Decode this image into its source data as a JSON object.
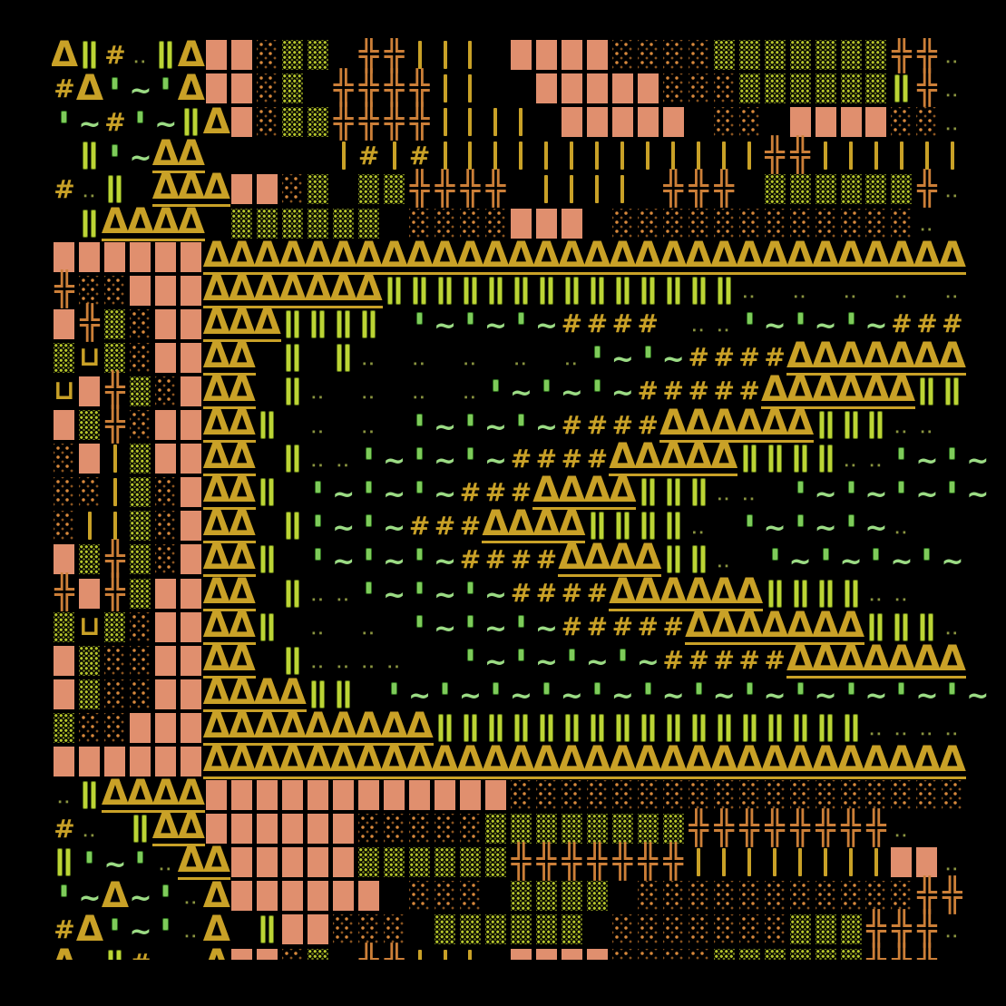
{
  "canvas": {
    "description": "Generative ASCII-art pattern grid, 37 columns by 28 rows of glyph cells on a black field; outermost row/column clipped by the frame.",
    "background": "#000000",
    "cols": 37,
    "rows": 28
  },
  "palette": {
    "gold": "#C9A127",
    "gold_dark": "#a9871f",
    "orange": "#CC7F38",
    "salmon": "#E08F6E",
    "salmon_dot": "#6e3319",
    "olive_block": "#B5C42C",
    "green_bar": "#BCD435",
    "green_bar_edge": "#5a7016",
    "green_tick": "#7ECB5A",
    "green_tilde": "#9BDB84",
    "olive_dots": "#8A9440"
  },
  "legend": {
    "T": "gold triangle delta glyph",
    "#": "gold hash glyph",
    "|": "gold vertical bar",
    "u": "gold square-cup glyph",
    "+": "orange double-cross glyph",
    "G": "yellow-green double vertical bar",
    "q": "bright green tick",
    "~": "light green tilde",
    ":": "olive dot pair",
    "S": "salmon brick-textured block",
    "O": "orange diamond-dot block",
    "V": "olive dot-grid block",
    ".": "empty black cell"
  },
  "glyph_chars": {
    "triangle": "Δ",
    "hash": "#",
    "cross": "╬",
    "cup": "⊔",
    "tilde": "~",
    "dotpair": "∙∙"
  },
  "rows": [
    "TG#:GTSSOVV.++|||.SSSSOOOOVVVVVVV++:.",
    "#Tq~qTSSOV.++++||..SSSSSOOOVVVVVVG+:.",
    "q~#q~GTSOVV++++||||.SSSSS.OO.SSSSOO:.",
    ".Gq~TT.....|#|#|||||||||||||++||||||.",
    "#:G.TTTSSOV.VV++++.||||.+++.VVVVVV+:.",
    ".GTTTT.VVVVVV.OOOOSSS.OOOOOOOOOOOO:..",
    "SSSSSSTTTTTTTTTTTTTTTTTTTTTTTTTTTTTT.",
    "+OOSSSTTTTTTTGGGGGGGGGGGGGG:.:.:.:.:.",
    "S+VOSSTTTGGGG.q~q~q~####.::q~q~q~###.",
    "VuVOSSTT.G.G:.:.:.:.:q~q~####TTTTTTT.",
    "uS+VOSTT.G:.:.:.:q~q~q~#####TTTTTTGG.",
    "SV+OSSTTG.:.:.q~q~q~####TTTTTTGGG::..",
    "OS|VSSTT.G::q~q~q~####TTTTTGGGG::q~q~",
    "OO|VOSTTG.q~q~q~###TTTTGGG::.q~q~q~q~",
    "O||VOSTT.Gq~q~###TTTTGGGG:.q~q~q~:...",
    "SV+VOSTTG.q~q~q~####TTTTGG:.q~q~q~q~.",
    "+S+VSSTT.G::q~q~q~####TTTTTTGGGG::...",
    "VuVOSSTTG.:.:.q~q~q~#####TTTTTTTGGG:.",
    "SVOOSSTT.G::::..q~q~q~q~#####TTTTTTT.",
    "SVOOSSTTTTGG.q~q~q~q~q~q~q~q~q~q~q~q~",
    "VOOSSSTTTTTTTTTGGGGGGGGGGGGGGGGG::::.",
    "SSSSSSTTTTTTTTTTTTTTTTTTTTTTTTTTTTTT.",
    ":GTTTTSSSSSSSSSSSSOOOOOOOOOOOOOOOOOO.",
    "#:.GTTSSSSSSOOOOOVVVVVVVV++++++++:...",
    "Gq~q:TTSSSSSVVVVVV+++++++||||||||SS:.",
    "q~T~q:TSSSSSS.OOO.VVVV.OOOOOOOOOOO++.",
    "#Tq~q:T.GSSOOO.VVVVVV.OOOOOOOVVV+++:.",
    "T.G#:.TSSOV.++|||.SSSSOOOOVVVVVV+++:."
  ]
}
